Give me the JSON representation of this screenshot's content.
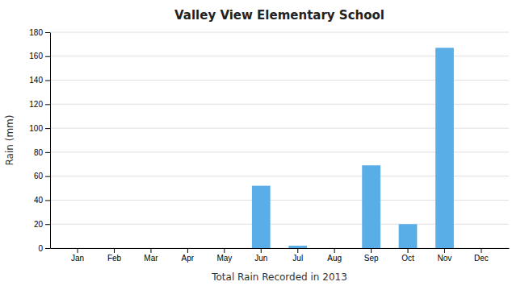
{
  "chart_data": {
    "type": "bar",
    "title": "Valley View Elementary School",
    "xlabel": "Total Rain Recorded in 2013",
    "ylabel": "Rain (mm)",
    "categories": [
      "Jan",
      "Feb",
      "Mar",
      "Apr",
      "May",
      "Jun",
      "Jul",
      "Aug",
      "Sep",
      "Oct",
      "Nov",
      "Dec"
    ],
    "values": [
      0,
      0,
      0,
      0,
      0,
      52,
      2,
      0,
      69,
      20,
      167,
      0
    ],
    "color": "#5aaee8",
    "ylim": [
      0,
      180
    ],
    "yticks": [
      0,
      20,
      40,
      60,
      80,
      100,
      120,
      140,
      160,
      180
    ],
    "grid": true
  }
}
